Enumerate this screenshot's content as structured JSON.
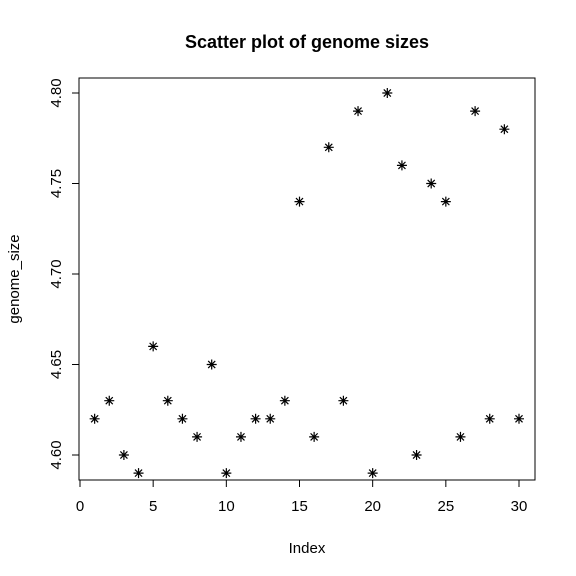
{
  "chart_data": {
    "type": "scatter",
    "title": "Scatter plot of genome sizes",
    "xlabel": "Index",
    "ylabel": "genome_size",
    "marker": "asterisk",
    "xlim": [
      0,
      30
    ],
    "ylim": [
      4.59,
      4.8
    ],
    "xticks": [
      0,
      5,
      10,
      15,
      20,
      25,
      30
    ],
    "yticks": [
      "4.60",
      "4.65",
      "4.70",
      "4.75",
      "4.80"
    ],
    "grid": false,
    "legend": "none",
    "x": [
      1,
      2,
      3,
      4,
      5,
      6,
      7,
      8,
      9,
      10,
      11,
      12,
      13,
      14,
      15,
      16,
      17,
      18,
      19,
      20,
      21,
      22,
      23,
      24,
      25,
      26,
      27,
      28,
      29,
      30
    ],
    "y": [
      4.62,
      4.63,
      4.6,
      4.59,
      4.66,
      4.63,
      4.62,
      4.61,
      4.65,
      4.59,
      4.61,
      4.62,
      4.62,
      4.63,
      4.74,
      4.61,
      4.77,
      4.63,
      4.79,
      4.59,
      4.8,
      4.76,
      4.6,
      4.75,
      4.74,
      4.61,
      4.79,
      4.62,
      4.78,
      4.62
    ],
    "colors": {
      "points": "#000000",
      "axes": "#000000",
      "background": "#ffffff"
    }
  }
}
